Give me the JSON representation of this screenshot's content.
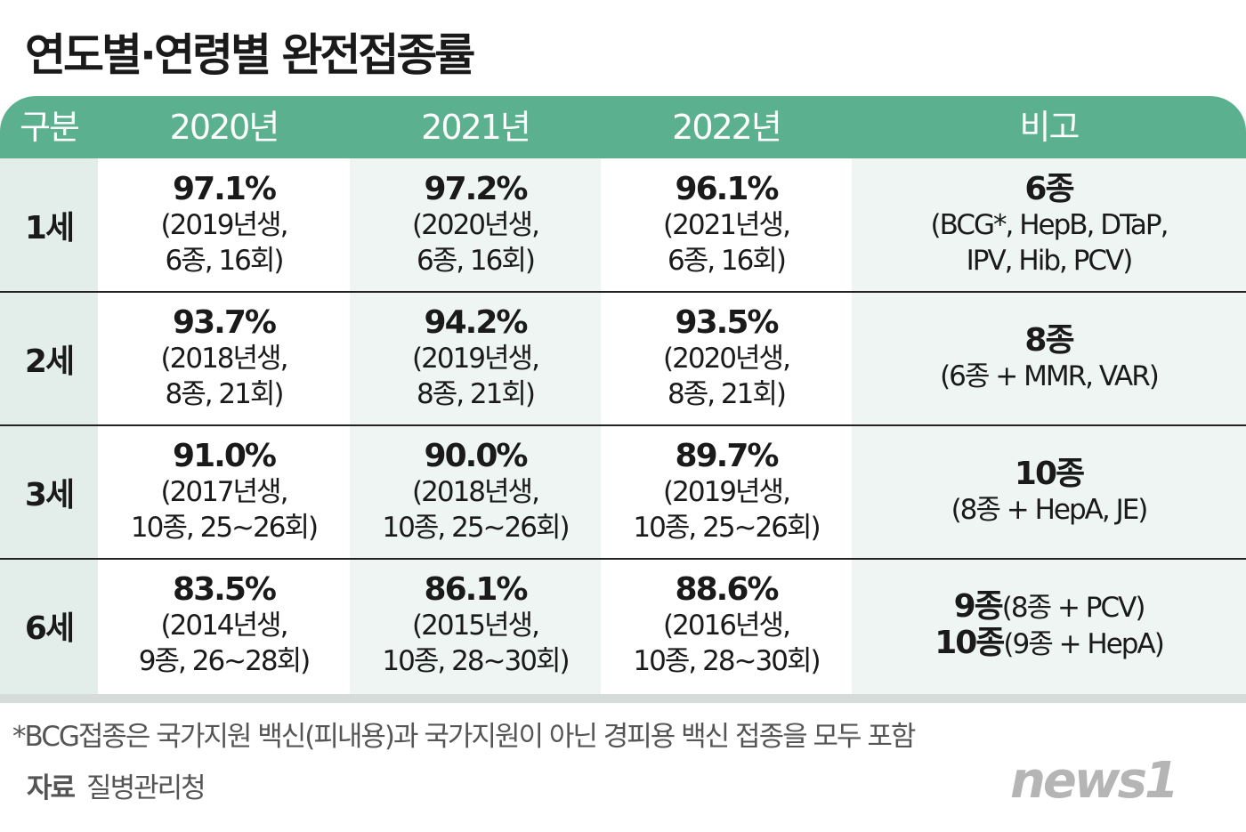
{
  "title": "연도별·연령별 완전접종률",
  "chart_data": {
    "type": "table",
    "columns": [
      "구분",
      "2020년",
      "2021년",
      "2022년",
      "비고"
    ],
    "rows": [
      {
        "label": "1세",
        "cells": [
          [
            "97.1%",
            "(2019년생,",
            "6종, 16회)"
          ],
          [
            "97.2%",
            "(2020년생,",
            "6종, 16회)"
          ],
          [
            "96.1%",
            "(2021년생,",
            "6종, 16회)"
          ]
        ],
        "note": [
          [
            "6종",
            ""
          ],
          [
            "(BCG*, HepB, DTaP,",
            ""
          ],
          [
            "IPV, Hib, PCV)",
            ""
          ]
        ]
      },
      {
        "label": "2세",
        "cells": [
          [
            "93.7%",
            "(2018년생,",
            "8종, 21회)"
          ],
          [
            "94.2%",
            "(2019년생,",
            "8종, 21회)"
          ],
          [
            "93.5%",
            "(2020년생,",
            "8종, 21회)"
          ]
        ],
        "note": [
          [
            "8종",
            ""
          ],
          [
            "(6종 + MMR, VAR)",
            ""
          ]
        ]
      },
      {
        "label": "3세",
        "cells": [
          [
            "91.0%",
            "(2017년생,",
            "10종, 25~26회)"
          ],
          [
            "90.0%",
            "(2018년생,",
            "10종, 25~26회)"
          ],
          [
            "89.7%",
            "(2019년생,",
            "10종, 25~26회)"
          ]
        ],
        "note": [
          [
            "10종",
            ""
          ],
          [
            "(8종 + HepA, JE)",
            ""
          ]
        ]
      },
      {
        "label": "6세",
        "cells": [
          [
            "83.5%",
            "(2014년생,",
            "9종, 26~28회)"
          ],
          [
            "86.1%",
            "(2015년생,",
            "10종, 28~30회)"
          ],
          [
            "88.6%",
            "(2016년생,",
            "10종, 28~30회)"
          ]
        ],
        "note": [
          [
            "9종",
            "(8종 + PCV)"
          ],
          [
            "10종",
            "(9종 + HepA)"
          ]
        ]
      }
    ]
  },
  "footnote": "*BCG접종은 국가지원 백신(피내용)과 국가지원이 아닌 경피용 백신 접종을 모두 포함",
  "source_label": "자료",
  "source": "질병관리청",
  "logo": "news1",
  "colors": {
    "header": "#5bb08f",
    "label_bg": "#e3ede9",
    "alt_bg": "#eef5f2"
  }
}
